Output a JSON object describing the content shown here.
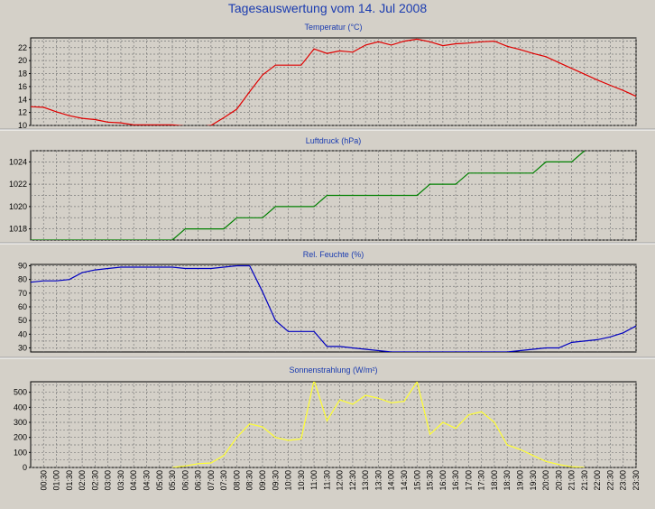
{
  "page": {
    "title": "Tagesauswertung vom 14. Jul 2008"
  },
  "chart_data": [
    {
      "type": "line",
      "title": "Temperatur (°C)",
      "ylim": [
        10,
        23.5
      ],
      "yticks": [
        10,
        12,
        14,
        16,
        18,
        20,
        22
      ],
      "color": "#e00000",
      "x": [
        0,
        0.5,
        1,
        1.5,
        2,
        2.5,
        3,
        3.5,
        4,
        4.5,
        5,
        5.5,
        6,
        6.5,
        7,
        7.5,
        8,
        8.5,
        9,
        9.5,
        10,
        10.5,
        11,
        11.5,
        12,
        12.5,
        13,
        13.5,
        14,
        14.5,
        15,
        15.5,
        16,
        16.5,
        17,
        17.5,
        18,
        18.5,
        19,
        19.5,
        20,
        20.5,
        21,
        21.5,
        22,
        22.5,
        23,
        23.5
      ],
      "values": [
        12.9,
        12.8,
        12.1,
        11.5,
        11.1,
        10.9,
        10.5,
        10.4,
        10.1,
        10.1,
        10.1,
        10.1,
        9.9,
        9.8,
        10.0,
        11.2,
        12.5,
        15.2,
        17.8,
        19.3,
        19.3,
        19.3,
        21.8,
        21.1,
        21.5,
        21.3,
        22.4,
        22.9,
        22.4,
        23.0,
        23.3,
        22.9,
        22.3,
        22.6,
        22.7,
        22.9,
        23.0,
        22.2,
        21.7,
        21.1,
        20.6,
        19.7,
        18.8,
        17.9,
        17.0,
        16.2,
        15.4,
        14.5
      ]
    },
    {
      "type": "line",
      "title": "Luftdruck (hPa)",
      "ylim": [
        1017,
        1025
      ],
      "yticks": [
        1018,
        1020,
        1022,
        1024
      ],
      "color": "#008000",
      "x": [
        0,
        0.5,
        1,
        1.5,
        2,
        2.5,
        3,
        3.5,
        4,
        4.5,
        5,
        5.5,
        6,
        6.5,
        7,
        7.5,
        8,
        8.5,
        9,
        9.5,
        10,
        10.5,
        11,
        11.5,
        12,
        12.5,
        13,
        13.5,
        14,
        14.5,
        15,
        15.5,
        16,
        16.5,
        17,
        17.5,
        18,
        18.5,
        19,
        19.5,
        20,
        20.5,
        21,
        21.5
      ],
      "values": [
        1017,
        1017,
        1017,
        1017,
        1017,
        1017,
        1017,
        1017,
        1017,
        1017,
        1017,
        1017,
        1018,
        1018,
        1018,
        1018,
        1019,
        1019,
        1019,
        1020,
        1020,
        1020,
        1020,
        1021,
        1021,
        1021,
        1021,
        1021,
        1021,
        1021,
        1021,
        1022,
        1022,
        1022,
        1023,
        1023,
        1023,
        1023,
        1023,
        1023,
        1024,
        1024,
        1024,
        1025
      ]
    },
    {
      "type": "line",
      "title": "Rel. Feuchte (%)",
      "ylim": [
        27,
        91
      ],
      "yticks": [
        30,
        40,
        50,
        60,
        70,
        80,
        90
      ],
      "color": "#0000c0",
      "x": [
        0,
        0.5,
        1,
        1.5,
        2,
        2.5,
        3,
        3.5,
        4,
        4.5,
        5,
        5.5,
        6,
        6.5,
        7,
        7.5,
        8,
        8.5,
        9,
        9.5,
        10,
        10.5,
        11,
        11.5,
        12,
        12.5,
        13,
        13.5,
        14,
        14.5,
        15,
        15.5,
        16,
        16.5,
        17,
        17.5,
        18,
        18.5,
        19,
        19.5,
        20,
        20.5,
        21,
        21.5,
        22,
        22.5,
        23,
        23.5
      ],
      "values": [
        78,
        79,
        79,
        80,
        85,
        87,
        88,
        89,
        89,
        89,
        89,
        89,
        88,
        88,
        88,
        89,
        90,
        90,
        71,
        50,
        42,
        42,
        42,
        31,
        31,
        30,
        29,
        28,
        27,
        27,
        27,
        27,
        27,
        27,
        27,
        27,
        27,
        27,
        28,
        29,
        30,
        30,
        34,
        35,
        36,
        38,
        41,
        46
      ]
    },
    {
      "type": "line",
      "title": "Sonnenstrahlung (W/m²)",
      "ylim": [
        0,
        570
      ],
      "yticks": [
        0,
        100,
        200,
        300,
        400,
        500
      ],
      "color": "#ffff30",
      "x": [
        5.5,
        6,
        6.5,
        7,
        7.5,
        8,
        8.5,
        9,
        9.5,
        10,
        10.5,
        11,
        11.5,
        12,
        12.5,
        13,
        13.5,
        14,
        14.5,
        15,
        15.5,
        16,
        16.5,
        17,
        17.5,
        18,
        18.5,
        19,
        19.5,
        20,
        20.5,
        21,
        21.5
      ],
      "values": [
        0,
        10,
        25,
        30,
        80,
        200,
        290,
        270,
        200,
        180,
        190,
        580,
        310,
        450,
        420,
        480,
        460,
        430,
        440,
        570,
        220,
        300,
        260,
        350,
        370,
        300,
        150,
        120,
        80,
        40,
        20,
        5,
        0
      ]
    }
  ],
  "x_axis": {
    "ticks": [
      "00:30",
      "01:00",
      "01:30",
      "02:00",
      "02:30",
      "03:00",
      "03:30",
      "04:00",
      "04:30",
      "05:00",
      "05:30",
      "06:00",
      "06:30",
      "07:00",
      "07:30",
      "08:00",
      "08:30",
      "09:00",
      "09:30",
      "10:00",
      "10:30",
      "11:00",
      "11:30",
      "12:00",
      "12:30",
      "13:00",
      "13:30",
      "14:00",
      "14:30",
      "15:00",
      "15:30",
      "16:00",
      "16:30",
      "17:00",
      "17:30",
      "18:00",
      "18:30",
      "19:00",
      "19:30",
      "20:00",
      "20:30",
      "21:00",
      "21:30",
      "22:00",
      "22:30",
      "23:00",
      "23:30"
    ]
  }
}
